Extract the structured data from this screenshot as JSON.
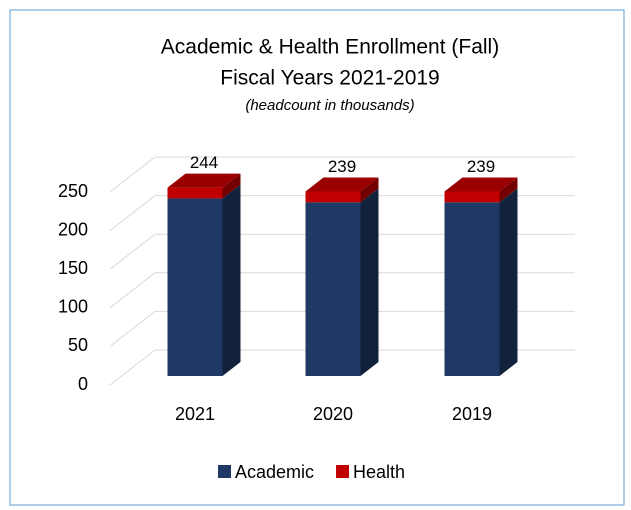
{
  "chart_data": {
    "type": "bar3d_stacked",
    "title": "Academic & Health Enrollment (Fall)",
    "subtitle": "Fiscal Years 2021-2019",
    "note": "(headcount in thousands)",
    "categories": [
      "2021",
      "2020",
      "2019"
    ],
    "series": [
      {
        "name": "Academic",
        "color": "#1f3864",
        "values": [
          230,
          225,
          225
        ]
      },
      {
        "name": "Health",
        "color": "#c00000",
        "values": [
          14,
          14,
          14
        ]
      }
    ],
    "totals": [
      244,
      239,
      239
    ],
    "ylim": [
      0,
      250
    ],
    "yticks": [
      0,
      50,
      100,
      150,
      200,
      250
    ],
    "grid": true,
    "legend": "bottom"
  }
}
